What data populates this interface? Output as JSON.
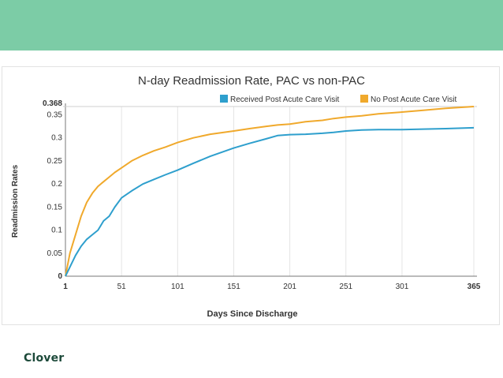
{
  "colors": {
    "band": "#7ccca6",
    "brand": "#1d4a3a",
    "series_blue": "#2e9fcd",
    "series_orange": "#f0a92c",
    "grid": "#e4e4e4",
    "text": "#333333"
  },
  "brand": {
    "name": "Clover"
  },
  "chart_data": {
    "type": "line",
    "title": "N-day Readmission Rate, PAC vs non-PAC",
    "xlabel": "Days Since Discharge",
    "ylabel": "Readmission Rates",
    "xlim": [
      1,
      365
    ],
    "ylim": [
      0,
      0.368
    ],
    "x_ticks": [
      "1",
      "51",
      "101",
      "151",
      "201",
      "251",
      "301",
      "365"
    ],
    "y_ticks": [
      "0",
      "0.05",
      "0.1",
      "0.15",
      "0.2",
      "0.25",
      "0.3",
      "0.35",
      "0.368"
    ],
    "grid": "vertical",
    "legend_position": "top-right",
    "series": [
      {
        "name": "Received Post Acute Care Visit",
        "color": "#2e9fcd",
        "x": [
          1,
          5,
          10,
          15,
          20,
          25,
          30,
          35,
          40,
          45,
          51,
          60,
          70,
          80,
          90,
          101,
          115,
          130,
          151,
          165,
          180,
          190,
          201,
          215,
          230,
          240,
          251,
          265,
          280,
          301,
          320,
          340,
          365
        ],
        "y": [
          0.0,
          0.02,
          0.045,
          0.065,
          0.08,
          0.09,
          0.1,
          0.12,
          0.13,
          0.15,
          0.17,
          0.185,
          0.2,
          0.21,
          0.22,
          0.23,
          0.245,
          0.26,
          0.278,
          0.288,
          0.298,
          0.305,
          0.307,
          0.308,
          0.31,
          0.312,
          0.315,
          0.317,
          0.318,
          0.318,
          0.319,
          0.32,
          0.322
        ]
      },
      {
        "name": "No Post Acute Care Visit",
        "color": "#f0a92c",
        "x": [
          1,
          5,
          10,
          15,
          20,
          25,
          30,
          35,
          40,
          45,
          51,
          60,
          70,
          80,
          90,
          101,
          115,
          130,
          151,
          165,
          180,
          190,
          201,
          215,
          230,
          240,
          251,
          265,
          280,
          301,
          320,
          340,
          365
        ],
        "y": [
          0.0,
          0.05,
          0.09,
          0.13,
          0.16,
          0.18,
          0.195,
          0.205,
          0.215,
          0.225,
          0.235,
          0.25,
          0.262,
          0.272,
          0.28,
          0.29,
          0.3,
          0.308,
          0.315,
          0.32,
          0.325,
          0.328,
          0.33,
          0.335,
          0.338,
          0.342,
          0.345,
          0.348,
          0.352,
          0.356,
          0.36,
          0.364,
          0.368
        ]
      }
    ]
  }
}
